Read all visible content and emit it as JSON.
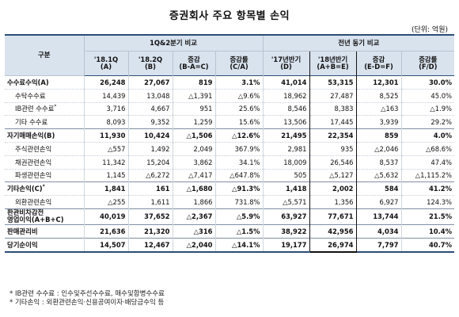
{
  "title": "증권회사 주요 항목별 손익",
  "unit": "(단위: 억원)",
  "header": {
    "corner": "구분",
    "group1": "1Q&2분기 비교",
    "group2": "전년 동기 비교",
    "columns": [
      [
        "'18.1Q",
        "(A)"
      ],
      [
        "'18.2Q",
        "(B)"
      ],
      [
        "증감",
        "(B-A=C)"
      ],
      [
        "증감률",
        "(C/A)"
      ],
      [
        "'17년반기",
        "(D)"
      ],
      [
        "'18년반기",
        "(A+B=E)"
      ],
      [
        "증감",
        "(E-D=F)"
      ],
      [
        "증감률",
        "(F/D)"
      ]
    ]
  },
  "rows": [
    {
      "label": [
        "수수료수익(A)"
      ],
      "type": "main",
      "values": [
        "26,248",
        "27,067",
        "819",
        "3.1%",
        "41,014",
        "53,315",
        "12,301",
        "30.0%"
      ]
    },
    {
      "label": [
        "수탁수수료"
      ],
      "type": "sub",
      "values": [
        "14,439",
        "13,048",
        "△1,391",
        "△9.6%",
        "18,962",
        "27,487",
        "8,525",
        "45.0%"
      ]
    },
    {
      "label": [
        "IB관련 수수료"
      ],
      "sup": "*",
      "type": "sub",
      "values": [
        "3,716",
        "4,667",
        "951",
        "25.6%",
        "8,546",
        "8,383",
        "△163",
        "△1.9%"
      ]
    },
    {
      "label": [
        "기타 수수료"
      ],
      "type": "sub",
      "values": [
        "8,093",
        "9,352",
        "1,259",
        "15.6%",
        "13,506",
        "17,445",
        "3,939",
        "29.2%"
      ]
    },
    {
      "label": [
        "자기매매손익(B)"
      ],
      "type": "main",
      "values": [
        "11,930",
        "10,424",
        "△1,506",
        "△12.6%",
        "21,495",
        "22,354",
        "859",
        "4.0%"
      ]
    },
    {
      "label": [
        "주식관련손익"
      ],
      "type": "sub",
      "values": [
        "△557",
        "1,492",
        "2,049",
        "367.9%",
        "2,981",
        "935",
        "△2,046",
        "△68.6%"
      ]
    },
    {
      "label": [
        "채권관련손익"
      ],
      "type": "sub",
      "values": [
        "11,342",
        "15,204",
        "3,862",
        "34.1%",
        "18,009",
        "26,546",
        "8,537",
        "47.4%"
      ]
    },
    {
      "label": [
        "파생관련손익"
      ],
      "type": "sub",
      "values": [
        "1,145",
        "△6,272",
        "△7,417",
        "△647.8%",
        "505",
        "△5,127",
        "△5,632",
        "△1,115.2%"
      ]
    },
    {
      "label": [
        "기타손익(C)"
      ],
      "sup": "*",
      "type": "main",
      "values": [
        "1,841",
        "161",
        "△1,680",
        "△91.3%",
        "1,418",
        "2,002",
        "584",
        "41.2%"
      ]
    },
    {
      "label": [
        "외환관련손익"
      ],
      "type": "sub",
      "values": [
        "△255",
        "1,611",
        "1,866",
        "731.8%",
        "△5,571",
        "1,356",
        "6,927",
        "124.3%"
      ]
    },
    {
      "label": [
        "판관비차감전",
        "영업이익(A+B+C)"
      ],
      "type": "main total",
      "values": [
        "40,019",
        "37,652",
        "△2,367",
        "△5.9%",
        "63,927",
        "77,671",
        "13,744",
        "21.5%"
      ]
    },
    {
      "label": [
        "판매관리비"
      ],
      "type": "main",
      "values": [
        "21,636",
        "21,320",
        "△316",
        "△1.5%",
        "38,922",
        "42,956",
        "4,034",
        "10.4%"
      ]
    },
    {
      "label": [
        "당기순이익"
      ],
      "type": "main",
      "values": [
        "14,507",
        "12,467",
        "△2,040",
        "△14.1%",
        "19,177",
        "26,974",
        "7,797",
        "40.7%"
      ]
    }
  ],
  "footnotes": [
    "* IB관련 수수료 : 인수및주선수수료, 매수및합병수수료",
    "* 기타손익 : 외환관련손익·신용공여이자·배당금수익 등"
  ]
}
